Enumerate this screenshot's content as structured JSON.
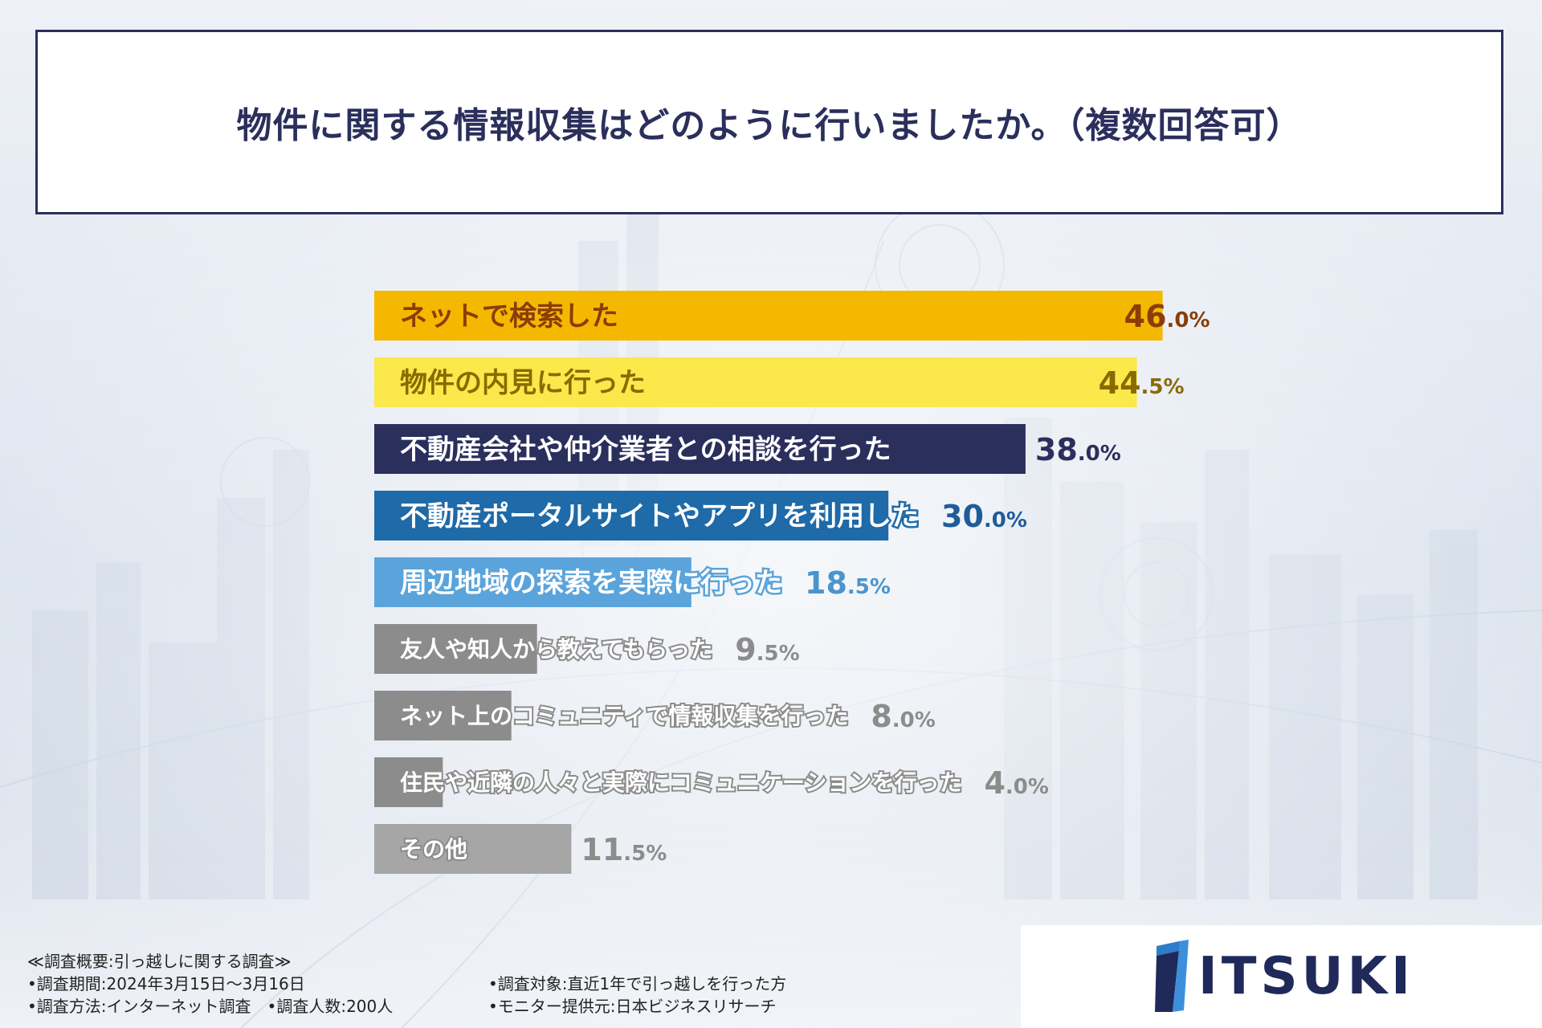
{
  "title": "物件に関する情報収集はどのように行いましたか。（複数回答可）",
  "chart_data": {
    "type": "bar",
    "orientation": "horizontal",
    "title": "物件に関する情報収集はどのように行いましたか。（複数回答可）",
    "categories": [
      "ネットで検索した",
      "物件の内見に行った",
      "不動産会社や仲介業者との相談を行った",
      "不動産ポータルサイトやアプリを利用した",
      "周辺地域の探索を実際に行った",
      "友人や知人から教えてもらった",
      "ネット上のコミュニティで情報収集を行った",
      "住民や近隣の人々と実際にコミュニケーションを行った",
      "その他"
    ],
    "values": [
      46.0,
      44.5,
      38.0,
      30.0,
      18.5,
      9.5,
      8.0,
      4.0,
      11.5
    ],
    "value_labels": [
      [
        "46",
        ".0%"
      ],
      [
        "44",
        ".5%"
      ],
      [
        "38",
        ".0%"
      ],
      [
        "30",
        ".0%"
      ],
      [
        "18",
        ".5%"
      ],
      [
        "9",
        ".5%"
      ],
      [
        "8",
        ".0%"
      ],
      [
        "4",
        ".0%"
      ],
      [
        "11",
        ".5%"
      ]
    ],
    "colors": [
      "#f5b800",
      "#fbe84a",
      "#2b2f5c",
      "#1f6aa8",
      "#5aa4db",
      "#8c8c8c",
      "#8c8c8c",
      "#8c8c8c",
      "#a6a6a6"
    ],
    "label_colors": [
      "#8a3d06",
      "#8a6a00",
      "#2b2f5c",
      "#1f5c99",
      "#4b95cf",
      "#8c8c8c",
      "#8c8c8c",
      "#8c8c8c",
      "#8c8c8c"
    ],
    "xlim": [
      0,
      100
    ]
  },
  "footer": {
    "heading": "≪調査概要:引っ越しに関する調査≫",
    "period": "•調査期間:2024年3月15日〜3月16日",
    "method": "•調査方法:インターネット調査　•調査人数:200人",
    "target": "•調査対象:直近1年で引っ越しを行った方",
    "monitor": "•モニター提供元:日本ビジネスリサーチ"
  },
  "logo": {
    "text": "ITSUKI"
  }
}
